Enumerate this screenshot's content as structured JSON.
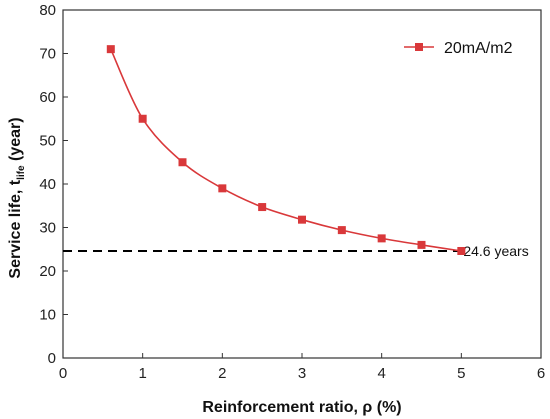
{
  "chart_data": {
    "type": "line",
    "xlabel": "Reinforcement ratio, ρ (%)",
    "ylabel_main": "Service life, t",
    "ylabel_sub": "life",
    "ylabel_tail": " (year)",
    "xlim": [
      0,
      6
    ],
    "ylim": [
      0,
      80
    ],
    "xticks": [
      0,
      1,
      2,
      3,
      4,
      5,
      6
    ],
    "yticks": [
      0,
      10,
      20,
      30,
      40,
      50,
      60,
      70,
      80
    ],
    "grid": false,
    "legend_position": "top-right",
    "series": [
      {
        "name": "20mA/m2",
        "color": "#d9383a",
        "marker": "square",
        "x": [
          0.6,
          1.0,
          1.5,
          2.0,
          2.5,
          3.0,
          3.5,
          4.0,
          4.5,
          5.0
        ],
        "y": [
          71.0,
          55.0,
          45.0,
          39.0,
          34.7,
          31.8,
          29.4,
          27.5,
          26.0,
          24.6
        ]
      }
    ],
    "reference_line": {
      "y": 24.6,
      "x_from": 0,
      "x_to": 5,
      "style": "dashed",
      "color": "#000000"
    },
    "annotations": [
      {
        "text": "24.6 years",
        "x": 5.0,
        "y": 24.6
      }
    ]
  }
}
